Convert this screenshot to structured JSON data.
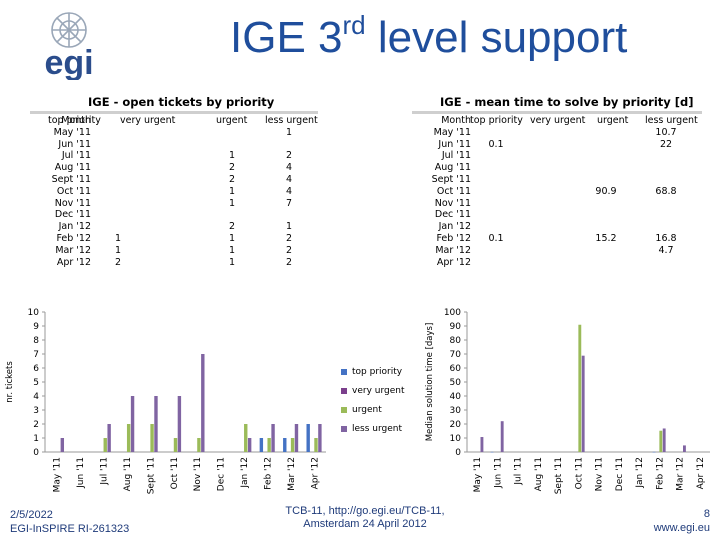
{
  "page": {
    "title_main": "IGE 3",
    "title_sup": "rd",
    "title_rest": " level support",
    "logo_text": "egi"
  },
  "colors": {
    "top_priority": "#4472c4",
    "very_urgent": "#7b3f8c",
    "urgent": "#9bbb59",
    "less_urgent": "#8064a2",
    "title_blue": "#1f4e9c"
  },
  "table_left": {
    "title": "IGE - open tickets by priority",
    "headers": [
      "Month",
      "top priority",
      "very urgent",
      "urgent",
      "less urgent"
    ],
    "rows": [
      [
        "May '11",
        "",
        "",
        "",
        "1"
      ],
      [
        "Jun '11",
        "",
        "",
        "",
        ""
      ],
      [
        "Jul '11",
        "",
        "",
        "1",
        "2"
      ],
      [
        "Aug '11",
        "",
        "",
        "2",
        "4"
      ],
      [
        "Sept '11",
        "",
        "",
        "2",
        "4"
      ],
      [
        "Oct '11",
        "",
        "",
        "1",
        "4"
      ],
      [
        "Nov '11",
        "",
        "",
        "1",
        "7"
      ],
      [
        "Dec '11",
        "",
        "",
        "",
        ""
      ],
      [
        "Jan '12",
        "",
        "",
        "2",
        "1"
      ],
      [
        "Feb '12",
        "1",
        "",
        "1",
        "2"
      ],
      [
        "Mar '12",
        "1",
        "",
        "1",
        "2"
      ],
      [
        "Apr '12",
        "2",
        "",
        "1",
        "2"
      ]
    ]
  },
  "table_right": {
    "title": "IGE - mean time to solve by priority [d]",
    "headers": [
      "Month",
      "top priority",
      "very urgent",
      "urgent",
      "less urgent"
    ],
    "rows": [
      [
        "May '11",
        "",
        "",
        "",
        "10.7"
      ],
      [
        "Jun '11",
        "0.1",
        "",
        "",
        "22"
      ],
      [
        "Jul '11",
        "",
        "",
        "",
        ""
      ],
      [
        "Aug '11",
        "",
        "",
        "",
        ""
      ],
      [
        "Sept '11",
        "",
        "",
        "",
        ""
      ],
      [
        "Oct '11",
        "",
        "",
        "90.9",
        "68.8"
      ],
      [
        "Nov '11",
        "",
        "",
        "",
        ""
      ],
      [
        "Dec '11",
        "",
        "",
        "",
        ""
      ],
      [
        "Jan '12",
        "",
        "",
        "",
        ""
      ],
      [
        "Feb '12",
        "0.1",
        "",
        "15.2",
        "16.8"
      ],
      [
        "Mar '12",
        "",
        "",
        "",
        "4.7"
      ],
      [
        "Apr '12",
        "",
        "",
        "",
        ""
      ]
    ]
  },
  "chart_data": [
    {
      "type": "bar",
      "categories": [
        "May '11",
        "Jun '11",
        "Jul '11",
        "Aug '11",
        "Sept '11",
        "Oct '11",
        "Nov '11",
        "Dec '11",
        "Jan '12",
        "Feb '12",
        "Mar '12",
        "Apr '12"
      ],
      "series": [
        {
          "name": "top priority",
          "values": [
            0,
            0,
            0,
            0,
            0,
            0,
            0,
            0,
            0,
            1,
            1,
            2
          ]
        },
        {
          "name": "very urgent",
          "values": [
            0,
            0,
            0,
            0,
            0,
            0,
            0,
            0,
            0,
            0,
            0,
            0
          ]
        },
        {
          "name": "urgent",
          "values": [
            0,
            0,
            1,
            2,
            2,
            1,
            1,
            0,
            2,
            1,
            1,
            1
          ]
        },
        {
          "name": "less urgent",
          "values": [
            1,
            0,
            2,
            4,
            4,
            4,
            7,
            0,
            1,
            2,
            2,
            2
          ]
        }
      ],
      "ylabel": "nr. tickets",
      "ylim": [
        0,
        10
      ],
      "yticks": [
        "0",
        "1",
        "2",
        "3",
        "4",
        "5",
        "6",
        "7",
        "8",
        "9",
        "10"
      ],
      "legend": [
        "top priority",
        "very urgent",
        "urgent",
        "less urgent"
      ],
      "legend_position": "right"
    },
    {
      "type": "bar",
      "categories": [
        "May '11",
        "Jun '11",
        "Jul '11",
        "Aug '11",
        "Sept '11",
        "Oct '11",
        "Nov '11",
        "Dec '11",
        "Jan '12",
        "Feb '12",
        "Mar '12",
        "Apr '12"
      ],
      "series": [
        {
          "name": "top priority",
          "values": [
            0,
            0.1,
            0,
            0,
            0,
            0,
            0,
            0,
            0,
            0.1,
            0,
            0
          ]
        },
        {
          "name": "very urgent",
          "values": [
            0,
            0,
            0,
            0,
            0,
            0,
            0,
            0,
            0,
            0,
            0,
            0
          ]
        },
        {
          "name": "urgent",
          "values": [
            0,
            0,
            0,
            0,
            0,
            90.9,
            0,
            0,
            0,
            15.2,
            0,
            0
          ]
        },
        {
          "name": "less urgent",
          "values": [
            10.7,
            22,
            0,
            0,
            0,
            68.8,
            0,
            0,
            0,
            16.8,
            4.7,
            0
          ]
        }
      ],
      "ylabel": "Median solution time [days]",
      "ylim": [
        0,
        100
      ],
      "yticks": [
        "0",
        "10",
        "20",
        "30",
        "40",
        "50",
        "60",
        "70",
        "80",
        "90",
        "100"
      ]
    }
  ],
  "footer": {
    "date": "2/5/2022",
    "project": "EGI-InSPIRE RI-261323",
    "event_line1": "TCB-11, http://go.egi.eu/TCB-11,",
    "event_line2": "Amsterdam 24 April 2012",
    "page_number": "8",
    "website": "www.egi.eu"
  }
}
